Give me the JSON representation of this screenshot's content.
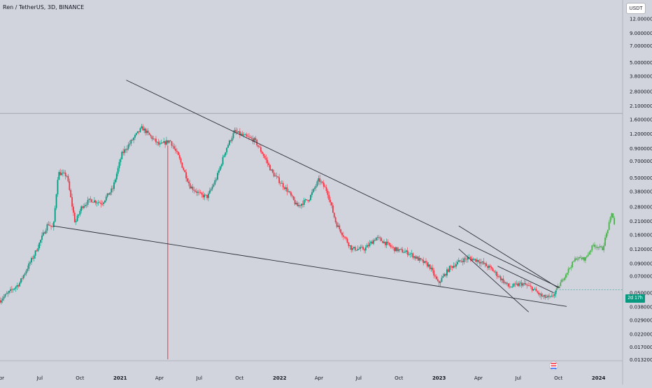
{
  "header": {
    "symbol_title": "Ren / TetherUS, 3D, BINANCE",
    "currency_button": "USDT",
    "countdown_badge": "2d 17h"
  },
  "colors": {
    "background": "#d1d4dc",
    "up_candle": "#089981",
    "down_candle": "#f23645",
    "projection": "#4caf50",
    "trendline": "#2a2e39",
    "event_line": "#f23645",
    "axis_text": "#131722"
  },
  "chart_data": {
    "type": "candlestick",
    "y_scale": "log",
    "ylim": [
      0.0132,
      13.5
    ],
    "y_ticks": [
      "12.000000",
      "9.000000",
      "7.000000",
      "5.000000",
      "3.800000",
      "2.800000",
      "2.100000",
      "1.600000",
      "1.200000",
      "0.900000",
      "0.700000",
      "0.500000",
      "0.380000",
      "0.280000",
      "0.210000",
      "0.160000",
      "0.120000",
      "0.090000",
      "0.070000",
      "0.050000",
      "0.038000",
      "0.029000",
      "0.022000",
      "0.017000",
      "0.013200"
    ],
    "x_ticks": [
      "Apr",
      "Jul",
      "Oct",
      "2021",
      "Apr",
      "Jul",
      "Oct",
      "2022",
      "Apr",
      "Jul",
      "Oct",
      "2023",
      "Apr",
      "Jul",
      "Oct",
      "2024"
    ],
    "xlim": [
      "2020-04-01",
      "2024-02-25"
    ],
    "price_path": [
      [
        "2020-04-01",
        0.043
      ],
      [
        "2020-05-15",
        0.06
      ],
      [
        "2020-06-20",
        0.11
      ],
      [
        "2020-07-20",
        0.2
      ],
      [
        "2020-08-01",
        0.18
      ],
      [
        "2020-08-12",
        0.55
      ],
      [
        "2020-09-01",
        0.52
      ],
      [
        "2020-09-20",
        0.2
      ],
      [
        "2020-10-05",
        0.28
      ],
      [
        "2020-10-25",
        0.32
      ],
      [
        "2020-11-20",
        0.3
      ],
      [
        "2020-12-15",
        0.4
      ],
      [
        "2021-01-05",
        0.8
      ],
      [
        "2021-02-01",
        1.1
      ],
      [
        "2021-02-20",
        1.35
      ],
      [
        "2021-03-10",
        1.15
      ],
      [
        "2021-04-01",
        0.95
      ],
      [
        "2021-04-25",
        1.05
      ],
      [
        "2021-05-15",
        0.75
      ],
      [
        "2021-06-10",
        0.42
      ],
      [
        "2021-07-05",
        0.35
      ],
      [
        "2021-07-20",
        0.34
      ],
      [
        "2021-08-10",
        0.5
      ],
      [
        "2021-09-01",
        0.9
      ],
      [
        "2021-09-20",
        1.25
      ],
      [
        "2021-10-10",
        1.15
      ],
      [
        "2021-11-05",
        1.05
      ],
      [
        "2021-11-25",
        0.78
      ],
      [
        "2021-12-15",
        0.55
      ],
      [
        "2022-01-20",
        0.38
      ],
      [
        "2022-02-10",
        0.28
      ],
      [
        "2022-03-10",
        0.33
      ],
      [
        "2022-04-01",
        0.48
      ],
      [
        "2022-04-20",
        0.38
      ],
      [
        "2022-05-10",
        0.2
      ],
      [
        "2022-06-15",
        0.12
      ],
      [
        "2022-07-15",
        0.12
      ],
      [
        "2022-08-10",
        0.15
      ],
      [
        "2022-08-25",
        0.14
      ],
      [
        "2022-09-20",
        0.12
      ],
      [
        "2022-10-25",
        0.11
      ],
      [
        "2022-11-10",
        0.1
      ],
      [
        "2022-12-10",
        0.085
      ],
      [
        "2022-12-30",
        0.06
      ],
      [
        "2023-01-25",
        0.082
      ],
      [
        "2023-02-20",
        0.095
      ],
      [
        "2023-03-10",
        0.1
      ],
      [
        "2023-04-01",
        0.095
      ],
      [
        "2023-05-01",
        0.08
      ],
      [
        "2023-06-10",
        0.056
      ],
      [
        "2023-07-10",
        0.06
      ],
      [
        "2023-08-01",
        0.055
      ],
      [
        "2023-08-25",
        0.046
      ],
      [
        "2023-09-15",
        0.045
      ],
      [
        "2023-09-27",
        0.053
      ]
    ],
    "projection_path": [
      [
        "2023-09-27",
        0.053
      ],
      [
        "2023-10-20",
        0.075
      ],
      [
        "2023-11-10",
        0.1
      ],
      [
        "2023-12-01",
        0.098
      ],
      [
        "2023-12-20",
        0.13
      ],
      [
        "2024-01-10",
        0.12
      ],
      [
        "2024-02-01",
        0.25
      ],
      [
        "2024-02-08",
        0.18
      ]
    ],
    "trendlines": [
      {
        "name": "falling-wedge-upper",
        "points": [
          [
            "2021-01-15",
            3.5
          ],
          [
            "2023-10-05",
            0.055
          ]
        ]
      },
      {
        "name": "falling-wedge-lower",
        "points": [
          [
            "2020-08-01",
            0.19
          ],
          [
            "2023-10-20",
            0.038
          ]
        ]
      },
      {
        "name": "channel-upper",
        "points": [
          [
            "2023-02-15",
            0.19
          ],
          [
            "2023-10-01",
            0.055
          ]
        ]
      },
      {
        "name": "channel-lower",
        "points": [
          [
            "2023-02-15",
            0.12
          ],
          [
            "2023-07-25",
            0.034
          ]
        ]
      },
      {
        "name": "breakout-line",
        "points": [
          [
            "2023-05-15",
            0.085
          ],
          [
            "2023-09-20",
            0.05
          ]
        ]
      }
    ],
    "horizontal_line": 1.8,
    "event_line_date": "2021-04-20",
    "current_price": 0.053
  }
}
